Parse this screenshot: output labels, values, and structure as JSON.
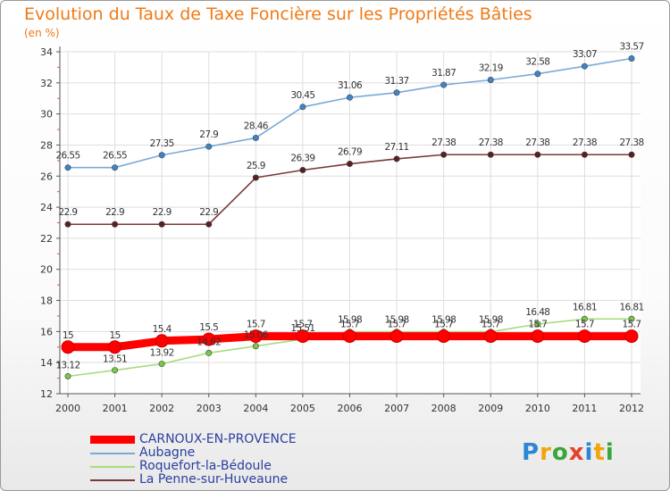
{
  "header": {
    "title": "Evolution du Taux de Taxe Foncière sur les Propriétés Bâties",
    "unit": "(en %)"
  },
  "logo": {
    "text": "Proxiti",
    "colors": [
      "#2b86d6",
      "#f3a40b",
      "#3aa53a",
      "#e3432b",
      "#2b86d6",
      "#f3a40b",
      "#3aa53a"
    ]
  },
  "chart_data": {
    "type": "line",
    "x": [
      "2000",
      "2001",
      "2002",
      "2003",
      "2004",
      "2005",
      "2006",
      "2007",
      "2008",
      "2009",
      "2010",
      "2011",
      "2012"
    ],
    "ylim": [
      12,
      34
    ],
    "yticks": [
      12,
      14,
      16,
      18,
      20,
      22,
      24,
      26,
      28,
      30,
      32,
      34
    ],
    "grid": true,
    "legend_position": "bottom-left",
    "series": [
      {
        "name": "CARNOUX-EN-PROVENCE",
        "color": "#ff0000",
        "marker_color": "#ff0000",
        "bold": true,
        "values": [
          15,
          15,
          15.4,
          15.5,
          15.7,
          15.7,
          15.7,
          15.7,
          15.7,
          15.7,
          15.7,
          15.7,
          15.7
        ],
        "labels": [
          "15",
          "15",
          "15.4",
          "15.5",
          "15.7",
          "15.7",
          "15.7",
          "15.7",
          "15.7",
          "15.7",
          "15.7",
          "15.7",
          "15.7"
        ]
      },
      {
        "name": "Aubagne",
        "color": "#7aaad8",
        "marker_color": "#3c85c8",
        "bold": false,
        "values": [
          26.55,
          26.55,
          27.35,
          27.9,
          28.46,
          30.45,
          31.06,
          31.37,
          31.87,
          32.19,
          32.58,
          33.07,
          33.57
        ],
        "labels": [
          "26.55",
          "26.55",
          "27.35",
          "27.9",
          "28.46",
          "30.45",
          "31.06",
          "31.37",
          "31.87",
          "32.19",
          "32.58",
          "33.07",
          "33.57"
        ]
      },
      {
        "name": "Roquefort-la-Bédoule",
        "color": "#a5dc7c",
        "marker_color": "#78c848",
        "bold": false,
        "values": [
          13.12,
          13.51,
          13.92,
          14.62,
          15.06,
          15.51,
          15.98,
          15.98,
          15.98,
          15.98,
          16.48,
          16.81,
          16.81
        ],
        "labels": [
          "13.12",
          "13.51",
          "13.92",
          "14.62",
          "15.06",
          "15.51",
          "15.98",
          "15.98",
          "15.98",
          "15.98",
          "16.48",
          "16.81",
          "16.81"
        ]
      },
      {
        "name": "La Penne-sur-Huveaune",
        "color": "#7a3838",
        "marker_color": "#5a1f1f",
        "bold": false,
        "values": [
          22.9,
          22.9,
          22.9,
          22.9,
          25.9,
          26.39,
          26.79,
          27.11,
          27.38,
          27.38,
          27.38,
          27.38,
          27.38
        ],
        "labels": [
          "22.9",
          "22.9",
          "22.9",
          "22.9",
          "25.9",
          "26.39",
          "26.79",
          "27.11",
          "27.38",
          "27.38",
          "27.38",
          "27.38",
          "27.38"
        ]
      }
    ]
  }
}
